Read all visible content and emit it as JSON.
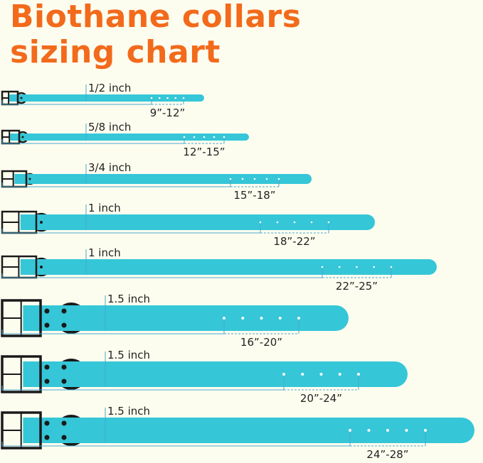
{
  "title": {
    "line1": "Biothane collars",
    "line2": "sizing chart"
  },
  "colors": {
    "title": "#f26a1b",
    "strap": "#35c6d8",
    "buckle": "#1a1a1a",
    "measure_line": "#4aa8d0",
    "background": "#fdfdef"
  },
  "collars": [
    {
      "width_label": "1/2 inch",
      "size_range": "9”-12”"
    },
    {
      "width_label": "5/8 inch",
      "size_range": "12”-15”"
    },
    {
      "width_label": "3/4 inch",
      "size_range": "15”-18”"
    },
    {
      "width_label": "1 inch",
      "size_range": "18”-22”"
    },
    {
      "width_label": "1 inch",
      "size_range": "22”-25”"
    },
    {
      "width_label": "1.5 inch",
      "size_range": "16”-20”"
    },
    {
      "width_label": "1.5 inch",
      "size_range": "20”-24”"
    },
    {
      "width_label": "1.5 inch",
      "size_range": "24”-28”"
    }
  ]
}
